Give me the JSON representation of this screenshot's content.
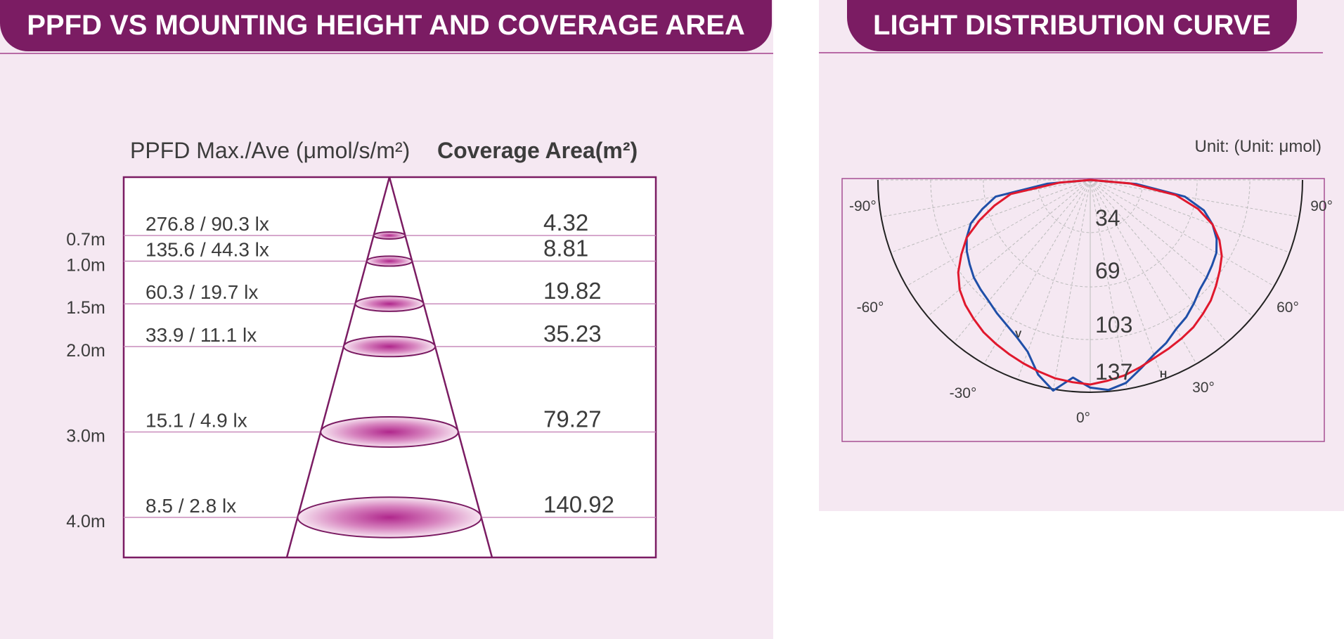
{
  "chart_data": [
    {
      "type": "table",
      "title": "PPFD VS MOUNTING HEIGHT AND COVERAGE AREA",
      "columns": [
        "PPFD Max./Ave (μmol/s/m²)",
        "Coverage Area(m²)"
      ],
      "heights": [
        "0.7m",
        "1.0m",
        "1.5m",
        "2.0m",
        "3.0m",
        "4.0m"
      ],
      "ppfd": [
        "276.8 / 90.3 lx",
        "135.6 / 44.3 lx",
        "60.3 / 19.7 lx",
        "33.9 / 11.1 lx",
        "15.1 / 4.9 lx",
        "8.5 / 2.8 lx"
      ],
      "coverage": [
        "4.32",
        "8.81",
        "19.82",
        "35.23",
        "79.27",
        "140.92"
      ],
      "height_values": [
        0.7,
        1.0,
        1.5,
        2.0,
        3.0,
        4.0
      ]
    },
    {
      "type": "polar",
      "title": "LIGHT DISTRIBUTION CURVE",
      "unit_label": "Unit: (Unit: μmol)",
      "radial_ticks": [
        34,
        69,
        103,
        137
      ],
      "radial_max": 137,
      "angle_labels": [
        "-90°",
        "90°",
        "-60°",
        "60°",
        "-30°",
        "30°",
        "0°"
      ],
      "series": [
        {
          "name": "V",
          "color": "#1f4fa8",
          "angles": [
            -90,
            -85,
            -80,
            -75,
            -70,
            -65,
            -60,
            -55,
            -50,
            -45,
            -40,
            -35,
            -30,
            -25,
            -20,
            -15,
            -10,
            -5,
            0,
            5,
            10,
            15,
            20,
            25,
            30,
            35,
            40,
            45,
            50,
            55,
            60,
            65,
            70,
            75,
            80,
            85,
            90
          ],
          "values": [
            0,
            28,
            62,
            72,
            82,
            88,
            92,
            95,
            98,
            100,
            102,
            105,
            108,
            112,
            118,
            130,
            138,
            128,
            134,
            136,
            133,
            126,
            120,
            116,
            111,
            108,
            104,
            100,
            98,
            96,
            94,
            90,
            84,
            76,
            62,
            30,
            0
          ]
        },
        {
          "name": "H",
          "color": "#e0182d",
          "angles": [
            -90,
            -85,
            -80,
            -75,
            -70,
            -65,
            -60,
            -55,
            -50,
            -45,
            -40,
            -35,
            -30,
            -25,
            -20,
            -15,
            -10,
            -5,
            0,
            5,
            10,
            15,
            20,
            25,
            30,
            35,
            40,
            45,
            50,
            55,
            60,
            65,
            70,
            75,
            80,
            85,
            90
          ],
          "values": [
            0,
            20,
            52,
            64,
            76,
            88,
            96,
            104,
            110,
            114,
            117,
            120,
            122,
            124,
            126,
            128,
            130,
            131,
            132,
            130,
            128,
            125,
            122,
            120,
            118,
            116,
            113,
            110,
            106,
            102,
            98,
            92,
            84,
            72,
            56,
            26,
            0
          ]
        }
      ]
    }
  ]
}
